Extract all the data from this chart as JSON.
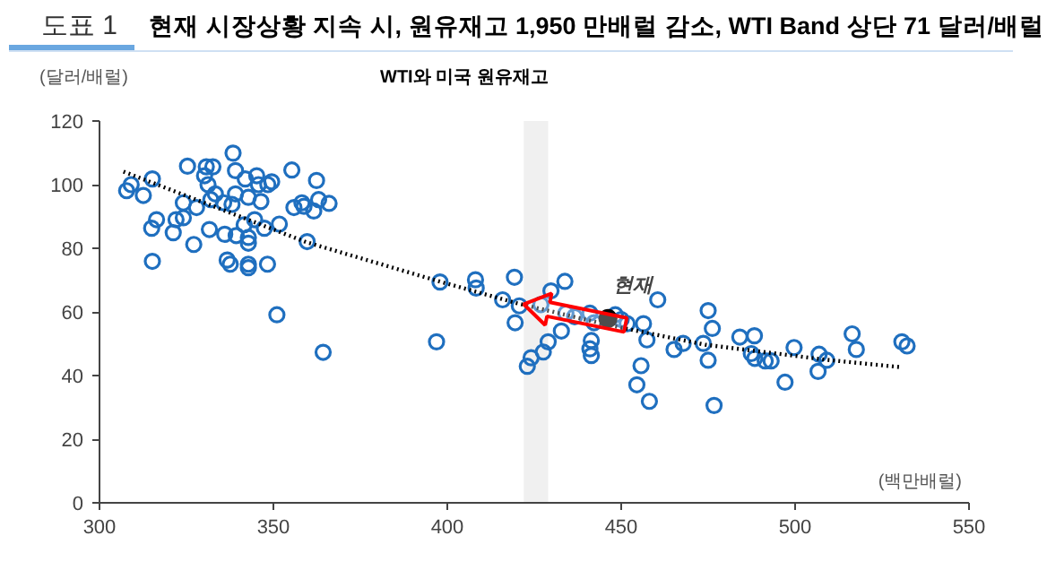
{
  "chart_data": {
    "type": "scatter",
    "title": "현재 시장상황 지속 시, 원유재고 1,950 만배럴 감소, WTI Band 상단 71 달러/배럴",
    "subtitle": "WTI와 미국 원유재고",
    "xlabel": "(백만배럴)",
    "ylabel": "(달러/배럴)",
    "annotations": [
      "도표 1",
      {
        "text": "현재",
        "x": 446.2,
        "y": 57.9
      }
    ],
    "xlim": [
      300,
      550
    ],
    "xticks": [
      300,
      350,
      400,
      450,
      500,
      550
    ],
    "ylim": [
      0,
      120
    ],
    "yticks": [
      0,
      20,
      40,
      60,
      80,
      100,
      120
    ],
    "grid": false,
    "marker": "circle",
    "bands": [
      {
        "axis": "x",
        "from": 422,
        "to": 429,
        "color": "#f0f0f0"
      }
    ],
    "series": [
      {
        "color": "#1f6fbf",
        "x": [
          307.8,
          309.1,
          312.6,
          315.2,
          316.4,
          315,
          315.2,
          321.2,
          322,
          324.1,
          324.1,
          325.3,
          327.1,
          327.9,
          330.2,
          330.7,
          332.6,
          331.2,
          331.6,
          332,
          333.3,
          335.7,
          336,
          336.7,
          337.6,
          338.1,
          338.4,
          339.1,
          339.1,
          339.3,
          341.6,
          341.9,
          342.8,
          342.8,
          342.8,
          342.8,
          342.8,
          345.2,
          344.6,
          345.7,
          346.4,
          347.4,
          348.4,
          349.5,
          348.3,
          351.7,
          351,
          355.3,
          355.9,
          358.2,
          359.7,
          358.8,
          361.6,
          362.4,
          363,
          366,
          364.3,
          397.9,
          396.9,
          408.1,
          408.3,
          415.9,
          419.3,
          419.5,
          423,
          420.7,
          424.1,
          427.6,
          429,
          426.9,
          429.8,
          433.8,
          432.8,
          434.1,
          436.6,
          441,
          441.4,
          441,
          441.4,
          442.2,
          448.3,
          450,
          451.7,
          456.4,
          457.4,
          455.7,
          454.5,
          458.1,
          460.5,
          465.2,
          467.8,
          473.6,
          475,
          476.2,
          475,
          476.7,
          484.1,
          488.3,
          487.4,
          488.4,
          491.4,
          493.1,
          499.7,
          497.1,
          506.9,
          506.6,
          509.1,
          516.4,
          517.6,
          530.7,
          532.2
        ],
        "values": [
          98.1,
          100,
          96.6,
          101.8,
          89,
          86.3,
          75.9,
          84.9,
          89,
          89.6,
          94.3,
          105.8,
          81.2,
          92.8,
          102.8,
          105.6,
          105.6,
          100,
          85.9,
          95.3,
          97.1,
          94.3,
          84.4,
          76.3,
          75,
          93.8,
          109.9,
          104.4,
          97.1,
          84,
          87.4,
          101.8,
          96,
          83.4,
          81.6,
          75,
          73.9,
          102.8,
          89,
          100,
          94.7,
          86.3,
          100,
          100.9,
          75,
          87.6,
          59.1,
          104.6,
          92.8,
          94.3,
          82.1,
          93.2,
          91.7,
          101.3,
          95.3,
          94.1,
          47.3,
          69.4,
          50.6,
          70.1,
          67.5,
          63.8,
          70.9,
          56.6,
          42.9,
          61.9,
          45.6,
          47.4,
          50.6,
          62.3,
          66.6,
          69.6,
          54,
          59.6,
          58.5,
          59.6,
          51,
          48.4,
          46.3,
          56.6,
          59.1,
          57.6,
          56.3,
          56.3,
          51.2,
          43.1,
          37.1,
          31.9,
          63.8,
          48.2,
          50.1,
          50.1,
          60.4,
          54.8,
          44.8,
          30.6,
          52.1,
          52.5,
          46.9,
          45.4,
          44.6,
          44.6,
          48.8,
          37.9,
          46.7,
          41.3,
          44.8,
          53.1,
          48.2,
          50.6,
          49.3
        ]
      },
      {
        "type": "line",
        "color": "#000000",
        "line_style": "dotted",
        "marker": "none",
        "x": [
          306.9,
          359.5,
          398.3,
          419.8,
          446.2,
          474.1,
          508.6,
          530.7
        ],
        "values": [
          104.1,
          81.9,
          69.4,
          62.8,
          55.9,
          49.7,
          45,
          42.6
        ]
      },
      {
        "type": "scatter",
        "color": "#000000",
        "x": [
          446.2
        ],
        "values": [
          57.9
        ]
      }
    ]
  }
}
